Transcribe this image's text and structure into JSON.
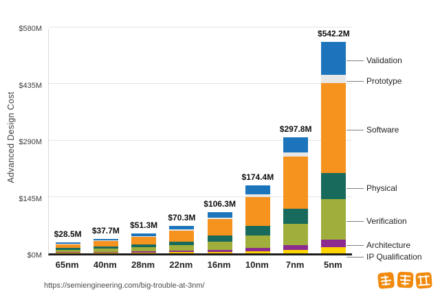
{
  "chart_data": {
    "type": "bar",
    "stacked": true,
    "title": "",
    "ylabel": "Advanced Design Cost",
    "xlabel": "",
    "ylim": [
      0,
      580
    ],
    "yticks": [
      "$0M",
      "$145M",
      "$290M",
      "$435M",
      "$580M"
    ],
    "ytick_values": [
      0,
      145,
      290,
      435,
      580
    ],
    "grid": true,
    "legend_position": "right",
    "categories": [
      "65nm",
      "40nm",
      "28nm",
      "22nm",
      "16nm",
      "10nm",
      "7nm",
      "5nm"
    ],
    "totals": [
      "$28.5M",
      "$37.7M",
      "$51.3M",
      "$70.3M",
      "$106.3M",
      "$174.4M",
      "$297.8M",
      "$542.2M"
    ],
    "total_values": [
      28.5,
      37.7,
      51.3,
      70.3,
      106.3,
      174.4,
      297.8,
      542.2
    ],
    "series": [
      {
        "name": "IP Qualification",
        "color": "#ffd500",
        "values": [
          1.5,
          1.8,
          2.2,
          2.8,
          4.0,
          6.0,
          9.5,
          16.0
        ]
      },
      {
        "name": "Architecture",
        "color": "#8d2a90",
        "values": [
          1.8,
          2.2,
          2.8,
          3.6,
          5.0,
          7.5,
          12.0,
          20.0
        ]
      },
      {
        "name": "Verification",
        "color": "#a0af3c",
        "values": [
          6.0,
          8.0,
          10.5,
          14.0,
          21.0,
          33.0,
          55.0,
          103.0
        ]
      },
      {
        "name": "Physical",
        "color": "#176a5c",
        "values": [
          4.2,
          5.5,
          7.5,
          10.0,
          15.0,
          23.5,
          38.0,
          67.0
        ]
      },
      {
        "name": "Software",
        "color": "#f6921e",
        "values": [
          10.0,
          13.7,
          19.3,
          27.4,
          42.8,
          73.9,
          132.8,
          230.2
        ]
      },
      {
        "name": "Prototype",
        "color": "#e7e7e7",
        "values": [
          1.5,
          1.8,
          2.3,
          3.0,
          4.5,
          7.0,
          10.5,
          20.0
        ]
      },
      {
        "name": "Validation",
        "color": "#1c75bc",
        "values": [
          3.5,
          4.7,
          6.7,
          9.5,
          14.0,
          23.5,
          40.0,
          86.0
        ]
      }
    ]
  },
  "footer": {
    "source_url": "https://semiengineering.com/big-trouble-at-3nm/"
  },
  "watermark": {
    "name": "zhidongxi-logo",
    "color": "#f08300"
  }
}
